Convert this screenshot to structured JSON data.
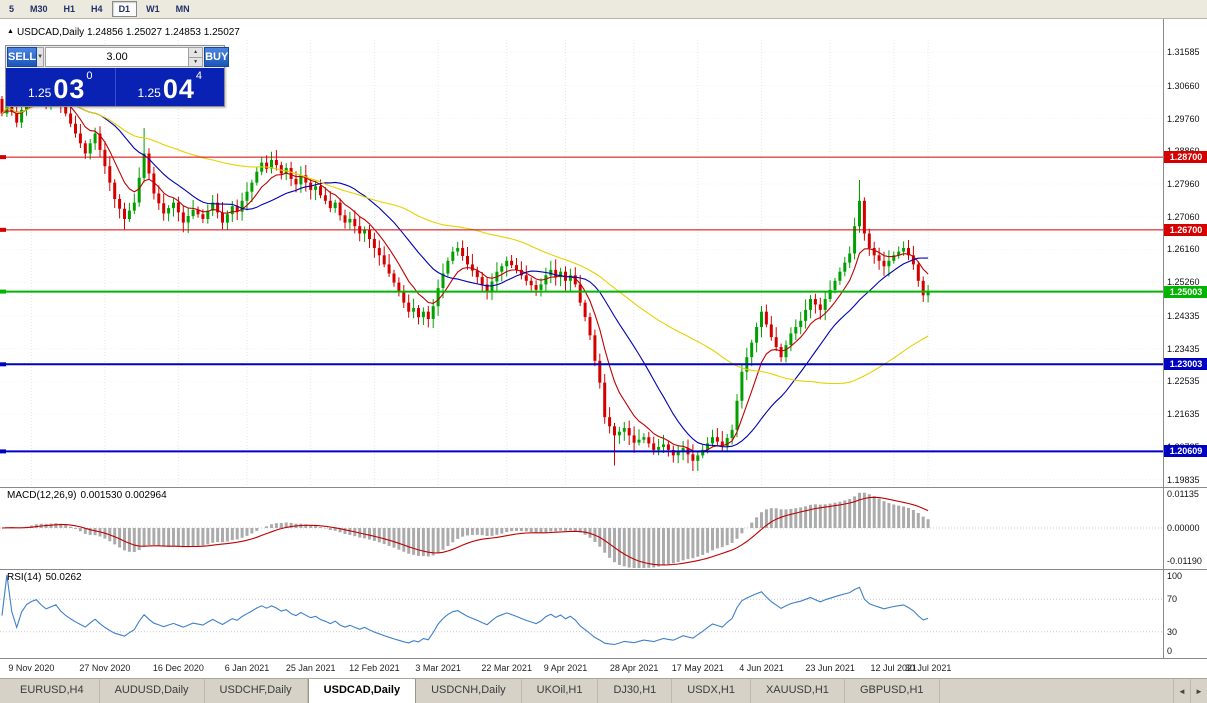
{
  "toolbar": {
    "timeframes": [
      "5",
      "M30",
      "H1",
      "H4",
      "D1",
      "W1",
      "MN"
    ],
    "active": "D1"
  },
  "chart": {
    "header": "USDCAD,Daily 1.24856 1.25027 1.24853 1.25027"
  },
  "icons": {
    "collapse": "▲",
    "dropdown": "▼",
    "spin_up": "▲",
    "spin_down": "▼",
    "scroll_left": "◄",
    "scroll_right": "►"
  },
  "trade_panel": {
    "sell_label": "SELL",
    "buy_label": "BUY",
    "volume": "3.00",
    "sell_price_small": "1.25",
    "sell_price_big": "03",
    "sell_price_sup": "0",
    "buy_price_small": "1.25",
    "buy_price_big": "04",
    "buy_price_sup": "4"
  },
  "macd": {
    "name": "MACD(12,26,9)",
    "values": "0.001530 0.002964",
    "axis": [
      "0.01135",
      "0.00000",
      "-0.01190"
    ]
  },
  "rsi": {
    "name": "RSI(14)",
    "value": "50.0262",
    "axis": [
      "100",
      "70",
      "30",
      "0"
    ]
  },
  "tabs": [
    {
      "label": "EURUSD,H4",
      "active": false
    },
    {
      "label": "AUDUSD,Daily",
      "active": false
    },
    {
      "label": "USDCHF,Daily",
      "active": false
    },
    {
      "label": "USDCAD,Daily",
      "active": true
    },
    {
      "label": "USDCNH,Daily",
      "active": false
    },
    {
      "label": "UKOil,H1",
      "active": false
    },
    {
      "label": "DJ30,H1",
      "active": false
    },
    {
      "label": "USDX,H1",
      "active": false
    },
    {
      "label": "XAUUSD,H1",
      "active": false
    },
    {
      "label": "GBPUSD,H1",
      "active": false
    }
  ],
  "chart_data": {
    "type": "candlestick",
    "symbol": "USDCAD",
    "timeframe": "Daily",
    "ohlc_current": {
      "open": 1.24856,
      "high": 1.25027,
      "low": 1.24853,
      "close": 1.25027
    },
    "y_range": [
      1.1963,
      1.3192
    ],
    "price_axis_ticks": [
      "1.31585",
      "1.30660",
      "1.29760",
      "1.28860",
      "1.27960",
      "1.27060",
      "1.26160",
      "1.25260",
      "1.24335",
      "1.23435",
      "1.22535",
      "1.21635",
      "1.20735",
      "1.19835"
    ],
    "x_labels": [
      {
        "label": "9 Nov 2020",
        "index": 6
      },
      {
        "label": "27 Nov 2020",
        "index": 21
      },
      {
        "label": "16 Dec 2020",
        "index": 36
      },
      {
        "label": "6 Jan 2021",
        "index": 50
      },
      {
        "label": "25 Jan 2021",
        "index": 63
      },
      {
        "label": "12 Feb 2021",
        "index": 76
      },
      {
        "label": "3 Mar 2021",
        "index": 89
      },
      {
        "label": "22 Mar 2021",
        "index": 103
      },
      {
        "label": "9 Apr 2021",
        "index": 115
      },
      {
        "label": "28 Apr 2021",
        "index": 129
      },
      {
        "label": "17 May 2021",
        "index": 142
      },
      {
        "label": "4 Jun 2021",
        "index": 155
      },
      {
        "label": "23 Jun 2021",
        "index": 169
      },
      {
        "label": "12 Jul 2021",
        "index": 182
      },
      {
        "label": "30 Jul 2021",
        "index": 189
      }
    ],
    "closes": [
      1.299,
      1.302,
      1.2995,
      1.2965,
      1.3,
      1.303,
      1.3048,
      1.306,
      1.3042,
      1.3025,
      1.304,
      1.3055,
      1.302,
      1.299,
      1.2962,
      1.2935,
      1.2908,
      1.288,
      1.2908,
      1.2935,
      1.289,
      1.2845,
      1.28,
      1.2755,
      1.2728,
      1.27,
      1.2723,
      1.2745,
      1.2813,
      1.288,
      1.2825,
      1.277,
      1.2743,
      1.2715,
      1.273,
      1.2745,
      1.2718,
      1.269,
      1.2708,
      1.2725,
      1.2713,
      1.27,
      1.2723,
      1.2745,
      1.2718,
      1.269,
      1.2713,
      1.2735,
      1.272,
      1.275,
      1.2775,
      1.28,
      1.283,
      1.2855,
      1.2838,
      1.2862,
      1.2848,
      1.2825,
      1.284,
      1.281,
      1.2795,
      1.282,
      1.28,
      1.278,
      1.279,
      1.2765,
      1.275,
      1.273,
      1.2745,
      1.271,
      1.269,
      1.27,
      1.268,
      1.266,
      1.267,
      1.2645,
      1.262,
      1.26,
      1.2575,
      1.255,
      1.2525,
      1.25,
      1.247,
      1.2445,
      1.2455,
      1.243,
      1.2445,
      1.2425,
      1.246,
      1.251,
      1.255,
      1.2585,
      1.261,
      1.262,
      1.2598,
      1.2575,
      1.2558,
      1.254,
      1.252,
      1.25,
      1.2528,
      1.2555,
      1.257,
      1.2585,
      1.2573,
      1.256,
      1.2545,
      1.253,
      1.2518,
      1.2505,
      1.252,
      1.2545,
      1.256,
      1.254,
      1.2555,
      1.253,
      1.2545,
      1.252,
      1.247,
      1.243,
      1.238,
      1.231,
      1.225,
      1.2155,
      1.213,
      1.2105,
      1.2115,
      1.2125,
      1.2105,
      1.2085,
      1.2093,
      1.21,
      1.2083,
      1.2065,
      1.2073,
      1.208,
      1.2065,
      1.205,
      1.206,
      1.207,
      1.2053,
      1.2035,
      1.205,
      1.2065,
      1.2083,
      1.21,
      1.2088,
      1.2075,
      1.2098,
      1.212,
      1.22,
      1.228,
      1.232,
      1.236,
      1.2403,
      1.2445,
      1.241,
      1.2375,
      1.2348,
      1.232,
      1.2353,
      1.2385,
      1.2403,
      1.242,
      1.245,
      1.248,
      1.2465,
      1.245,
      1.248,
      1.2505,
      1.253,
      1.2555,
      1.258,
      1.2605,
      1.268,
      1.275,
      1.266,
      1.262,
      1.26,
      1.2585,
      1.257,
      1.2585,
      1.26,
      1.261,
      1.262,
      1.26,
      1.2575,
      1.253,
      1.249,
      1.2503
    ],
    "wick_high_overrides": {
      "29": 1.295,
      "55": 1.2885,
      "175": 1.2807
    },
    "wick_low_overrides": {
      "125": 1.2022,
      "141": 1.2007
    },
    "candle_colors": {
      "up": "#00a000",
      "down": "#d40000"
    },
    "horizontal_lines": [
      {
        "price": 1.287,
        "label": "1.28700",
        "color": "#d40000",
        "width": 1
      },
      {
        "price": 1.267,
        "label": "1.26700",
        "color": "#d40000",
        "width": 1
      },
      {
        "price": 1.25003,
        "label": "1.25003",
        "color": "#00b400",
        "width": 2
      },
      {
        "price": 1.23003,
        "label": "1.23003",
        "color": "#0000c0",
        "width": 2
      },
      {
        "price": 1.20609,
        "label": "1.20609",
        "color": "#0000c0",
        "width": 2
      }
    ],
    "moving_averages": [
      {
        "period": 8,
        "type": "ema",
        "color": "#c00000"
      },
      {
        "period": 20,
        "type": "sma",
        "color": "#0000b4"
      },
      {
        "period": 55,
        "type": "sma",
        "color": "#e6d200"
      }
    ],
    "indicators": {
      "macd": {
        "fast": 12,
        "slow": 26,
        "signal": 9,
        "current": 0.00153,
        "current_signal": 0.002964,
        "histogram_color": "#ababab",
        "signal_color": "#c00000",
        "axis_max": 0.01135,
        "axis_min": -0.0119
      },
      "rsi": {
        "period": 14,
        "current": 50.0262,
        "color": "#3f7fca",
        "levels": [
          70,
          30
        ]
      }
    }
  }
}
